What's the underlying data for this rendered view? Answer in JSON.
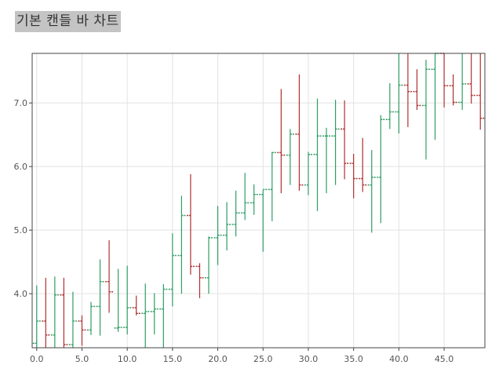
{
  "chart_data": {
    "type": "ohlc",
    "title": "기본 캔들 바 차트",
    "xlabel": "",
    "ylabel": "",
    "xlim": [
      -0.5,
      49.5
    ],
    "ylim": [
      3.15,
      7.78
    ],
    "x_ticks": [
      "0.0",
      "5.0",
      "10.0",
      "15.0",
      "20.0",
      "25.0",
      "30.0",
      "35.0",
      "40.0",
      "45.0"
    ],
    "y_ticks": [
      "4.0",
      "5.0",
      "6.0",
      "7.0"
    ],
    "x_tick_values": [
      0,
      5,
      10,
      15,
      20,
      25,
      30,
      35,
      40,
      45
    ],
    "y_tick_values": [
      4.0,
      5.0,
      6.0,
      7.0
    ],
    "grid": true,
    "up_color": "#2e9e63",
    "down_color": "#b03030",
    "bars": [
      {
        "x": 0,
        "open": 3.22,
        "high": 4.13,
        "low": 3.1,
        "close": 3.57
      },
      {
        "x": 1,
        "open": 3.57,
        "high": 4.25,
        "low": 3.1,
        "close": 3.35
      },
      {
        "x": 2,
        "open": 3.35,
        "high": 4.27,
        "low": 3.1,
        "close": 3.98
      },
      {
        "x": 3,
        "open": 3.98,
        "high": 4.25,
        "low": 3.1,
        "close": 3.2
      },
      {
        "x": 4,
        "open": 3.2,
        "high": 4.03,
        "low": 3.1,
        "close": 3.57
      },
      {
        "x": 5,
        "open": 3.57,
        "high": 3.66,
        "low": 3.18,
        "close": 3.43
      },
      {
        "x": 6,
        "open": 3.43,
        "high": 3.87,
        "low": 3.35,
        "close": 3.8
      },
      {
        "x": 7,
        "open": 3.8,
        "high": 4.54,
        "low": 3.34,
        "close": 4.19
      },
      {
        "x": 8,
        "open": 4.19,
        "high": 4.84,
        "low": 3.7,
        "close": 4.03
      },
      {
        "x": 9,
        "open": 3.46,
        "high": 4.39,
        "low": 3.4,
        "close": 3.47
      },
      {
        "x": 10,
        "open": 3.47,
        "high": 4.44,
        "low": 3.36,
        "close": 3.78
      },
      {
        "x": 11,
        "open": 3.78,
        "high": 3.97,
        "low": 3.66,
        "close": 3.69
      },
      {
        "x": 12,
        "open": 3.69,
        "high": 4.16,
        "low": 3.15,
        "close": 3.72
      },
      {
        "x": 13,
        "open": 3.72,
        "high": 4.01,
        "low": 3.36,
        "close": 3.76
      },
      {
        "x": 14,
        "open": 3.76,
        "high": 4.15,
        "low": 3.15,
        "close": 4.07
      },
      {
        "x": 15,
        "open": 4.07,
        "high": 4.95,
        "low": 3.8,
        "close": 4.6
      },
      {
        "x": 16,
        "open": 4.6,
        "high": 5.54,
        "low": 4.0,
        "close": 5.23
      },
      {
        "x": 17,
        "open": 5.23,
        "high": 5.88,
        "low": 4.3,
        "close": 4.43
      },
      {
        "x": 18,
        "open": 4.43,
        "high": 4.48,
        "low": 3.93,
        "close": 4.25
      },
      {
        "x": 19,
        "open": 4.25,
        "high": 4.9,
        "low": 4.0,
        "close": 4.88
      },
      {
        "x": 20,
        "open": 4.88,
        "high": 5.38,
        "low": 4.45,
        "close": 4.92
      },
      {
        "x": 21,
        "open": 4.92,
        "high": 5.44,
        "low": 4.68,
        "close": 5.09
      },
      {
        "x": 22,
        "open": 5.09,
        "high": 5.62,
        "low": 4.9,
        "close": 5.27
      },
      {
        "x": 23,
        "open": 5.27,
        "high": 5.9,
        "low": 5.16,
        "close": 5.43
      },
      {
        "x": 24,
        "open": 5.43,
        "high": 5.72,
        "low": 5.24,
        "close": 5.56
      },
      {
        "x": 25,
        "open": 5.56,
        "high": 5.63,
        "low": 4.66,
        "close": 5.64
      },
      {
        "x": 26,
        "open": 5.64,
        "high": 6.23,
        "low": 5.14,
        "close": 6.22
      },
      {
        "x": 27,
        "open": 6.22,
        "high": 7.22,
        "low": 5.58,
        "close": 6.18
      },
      {
        "x": 28,
        "open": 6.18,
        "high": 6.59,
        "low": 5.71,
        "close": 6.51
      },
      {
        "x": 29,
        "open": 6.51,
        "high": 7.45,
        "low": 5.62,
        "close": 5.71
      },
      {
        "x": 30,
        "open": 5.71,
        "high": 6.23,
        "low": 5.55,
        "close": 6.19
      },
      {
        "x": 31,
        "open": 6.19,
        "high": 7.07,
        "low": 5.3,
        "close": 6.48
      },
      {
        "x": 32,
        "open": 6.48,
        "high": 6.61,
        "low": 5.58,
        "close": 6.48
      },
      {
        "x": 33,
        "open": 6.48,
        "high": 7.05,
        "low": 5.71,
        "close": 6.59
      },
      {
        "x": 34,
        "open": 6.59,
        "high": 7.04,
        "low": 5.8,
        "close": 6.05
      },
      {
        "x": 35,
        "open": 6.05,
        "high": 6.2,
        "low": 5.5,
        "close": 5.81
      },
      {
        "x": 36,
        "open": 5.81,
        "high": 6.45,
        "low": 5.6,
        "close": 5.71
      },
      {
        "x": 37,
        "open": 5.71,
        "high": 6.26,
        "low": 4.96,
        "close": 5.83
      },
      {
        "x": 38,
        "open": 5.83,
        "high": 6.81,
        "low": 5.11,
        "close": 6.74
      },
      {
        "x": 39,
        "open": 6.74,
        "high": 7.31,
        "low": 6.59,
        "close": 6.86
      },
      {
        "x": 40,
        "open": 6.86,
        "high": 7.8,
        "low": 6.52,
        "close": 7.28
      },
      {
        "x": 41,
        "open": 7.28,
        "high": 7.8,
        "low": 6.62,
        "close": 7.18
      },
      {
        "x": 42,
        "open": 7.18,
        "high": 7.53,
        "low": 6.89,
        "close": 6.96
      },
      {
        "x": 43,
        "open": 6.96,
        "high": 7.68,
        "low": 6.11,
        "close": 7.53
      },
      {
        "x": 44,
        "open": 7.53,
        "high": 7.8,
        "low": 6.42,
        "close": 7.78
      },
      {
        "x": 45,
        "open": 7.78,
        "high": 7.8,
        "low": 6.93,
        "close": 7.27
      },
      {
        "x": 46,
        "open": 7.27,
        "high": 7.45,
        "low": 6.96,
        "close": 7.01
      },
      {
        "x": 47,
        "open": 7.01,
        "high": 7.8,
        "low": 6.89,
        "close": 7.3
      },
      {
        "x": 48,
        "open": 7.3,
        "high": 7.8,
        "low": 6.99,
        "close": 7.12
      },
      {
        "x": 49,
        "open": 7.12,
        "high": 7.8,
        "low": 6.58,
        "close": 6.76
      }
    ]
  }
}
